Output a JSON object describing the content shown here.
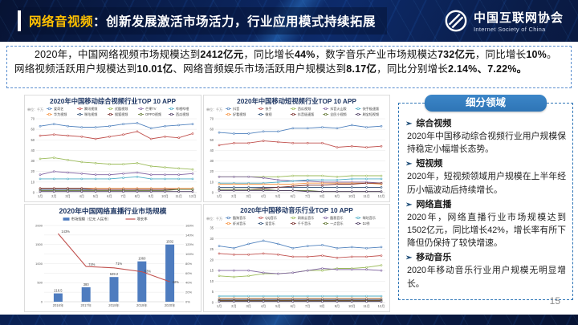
{
  "header": {
    "title_highlight": "网络音视频",
    "title_rest": "：创新发展激活市场活力，行业应用模式持续拓展",
    "logo_cn": "中国互联网协会",
    "logo_en": "Internet Society of China"
  },
  "intro": {
    "segments": [
      {
        "t": "2020年，中国网络视频市场规模达到",
        "b": false
      },
      {
        "t": "2412亿元",
        "b": true
      },
      {
        "t": "，同比增长",
        "b": false
      },
      {
        "t": "44%",
        "b": true
      },
      {
        "t": "，数字音乐产业市场规模达",
        "b": false
      },
      {
        "t": "732亿元",
        "b": true
      },
      {
        "t": "，同比增长",
        "b": false
      },
      {
        "t": "10%",
        "b": true
      },
      {
        "t": "。网络视频活跃用户规模达到",
        "b": false
      },
      {
        "t": "10.01亿",
        "b": true
      },
      {
        "t": "、网络音频娱乐市场活跃用户规模达到",
        "b": false
      },
      {
        "t": "8.17亿",
        "b": true
      },
      {
        "t": "，同比分别增长",
        "b": false
      },
      {
        "t": "2.14%、7.22%。",
        "b": true
      }
    ]
  },
  "sidebar": {
    "title": "细分领域",
    "bullet": "➢",
    "sections": [
      {
        "title": "综合视频",
        "body": "2020年中国移动综合视频行业用户规模保持稳定小幅增长态势。"
      },
      {
        "title": "短视频",
        "body": "2020年，短视频领域用户规模在上半年经历小幅波动后持续增长。"
      },
      {
        "title": "网络直播",
        "body": "2020年，网络直播行业市场规模达到1502亿元，同比增长42%，增长率有所下降但仍保持了较快增速。"
      },
      {
        "title": "移动音乐",
        "body": "2020年移动音乐行业用户规模无明显增长。"
      }
    ]
  },
  "page_number": "15",
  "colors": {
    "accent": "#2E75B6",
    "highlight": "#FFC000",
    "bar": "#4E7CBF",
    "line": "#C0504D",
    "series": [
      "#4F81BD",
      "#C0504D",
      "#9BBB59",
      "#8064A2",
      "#4BACC6",
      "#F79646",
      "#2C4D75",
      "#772C2A",
      "#5F7530",
      "#4D3B62"
    ]
  },
  "chart_data": [
    {
      "type": "line",
      "title": "2020年中国移动综合视频行业TOP 10 APP",
      "unit": "单位：千万",
      "x": [
        "1月",
        "2月",
        "3月",
        "4月",
        "5月",
        "6月",
        "7月",
        "8月",
        "9月",
        "10月",
        "11月",
        "12月"
      ],
      "ylim": [
        0,
        70
      ],
      "ystep": 10,
      "series": [
        {
          "name": "爱奇艺",
          "values": [
            63,
            65,
            63,
            62,
            62,
            63,
            65,
            66,
            61,
            63,
            64,
            65
          ]
        },
        {
          "name": "腾讯视频",
          "values": [
            54,
            55,
            54,
            53,
            51,
            53,
            55,
            58,
            51,
            53,
            52,
            56
          ]
        },
        {
          "name": "优酷视频",
          "values": [
            32,
            33,
            31,
            29,
            28,
            27,
            27,
            28,
            25,
            24,
            23,
            22
          ]
        },
        {
          "name": "芒果TV",
          "values": [
            17,
            20,
            19,
            18,
            17,
            17,
            18,
            19,
            17,
            17,
            17,
            18
          ]
        },
        {
          "name": "哔哩哔哩",
          "values": [
            13,
            13,
            13,
            13,
            13,
            13,
            14,
            15,
            13,
            13,
            13,
            13
          ]
        },
        {
          "name": "华为视频",
          "values": [
            4,
            4,
            4,
            4,
            4,
            4,
            4,
            4,
            4,
            4,
            4,
            4
          ]
        },
        {
          "name": "咪咕视频",
          "values": [
            3,
            3,
            3,
            3,
            3,
            3,
            3,
            3,
            3,
            3,
            3,
            3
          ]
        },
        {
          "name": "搜狐视频",
          "values": [
            4,
            4,
            4,
            4,
            3,
            3,
            3,
            3,
            3,
            3,
            3,
            3
          ]
        },
        {
          "name": "OPPO视频",
          "values": [
            2,
            2,
            2,
            2,
            2,
            2,
            2,
            2,
            2,
            2,
            3,
            3
          ]
        },
        {
          "name": "西瓜视频",
          "values": [
            1,
            1,
            1,
            1,
            1,
            1,
            1,
            1,
            1,
            1,
            1,
            1
          ]
        }
      ]
    },
    {
      "type": "line",
      "title": "2020年中国移动短视频行业TOP 10 APP",
      "unit": "单位：千万",
      "x": [
        "1月",
        "2月",
        "3月",
        "4月",
        "5月",
        "6月",
        "7月",
        "8月",
        "9月",
        "10月",
        "11月",
        "12月"
      ],
      "ylim": [
        0,
        70
      ],
      "ystep": 10,
      "series": [
        {
          "name": "抖音",
          "values": [
            57,
            56,
            56,
            58,
            58,
            61,
            61,
            62,
            61,
            64,
            62,
            63
          ]
        },
        {
          "name": "快手",
          "values": [
            45,
            47,
            47,
            49,
            48,
            47,
            47,
            47,
            43,
            44,
            43,
            44
          ]
        },
        {
          "name": "西瓜视频",
          "values": [
            15,
            15,
            15,
            15,
            15,
            16,
            16,
            16,
            15,
            16,
            16,
            16
          ]
        },
        {
          "name": "抖音火山版",
          "values": [
            15,
            15,
            15,
            14,
            12,
            11,
            11,
            10,
            10,
            10,
            10,
            9
          ]
        },
        {
          "name": "快手极速版",
          "values": [
            9,
            9,
            9,
            9,
            10,
            11,
            12,
            12,
            12,
            13,
            13,
            13
          ]
        },
        {
          "name": "好看视频",
          "values": [
            8,
            8,
            8,
            8,
            8,
            8,
            9,
            9,
            9,
            9,
            9,
            8
          ]
        },
        {
          "name": "微视",
          "values": [
            5,
            5,
            5,
            5,
            5,
            5,
            5,
            5,
            5,
            5,
            5,
            5
          ]
        },
        {
          "name": "抖音极速版",
          "values": [
            3,
            3,
            3,
            4,
            5,
            6,
            7,
            7,
            8,
            8,
            9,
            9
          ]
        },
        {
          "name": "全民小视频",
          "values": [
            3,
            3,
            3,
            3,
            2,
            2,
            2,
            1,
            1,
            1,
            1,
            1
          ]
        },
        {
          "name": "刷宝短视频",
          "values": [
            2,
            2,
            2,
            2,
            2,
            2,
            1,
            1,
            1,
            1,
            1,
            1
          ]
        }
      ]
    },
    {
      "type": "bar-line",
      "title": "2020年中国网络直播行业市场规模",
      "categories": [
        "2016年",
        "2017年",
        "2018年",
        "2019年",
        "2020年"
      ],
      "bar": {
        "name": "市场规模（亿元 人民币）",
        "values": [
          218.5,
          380,
          649.2,
          1060,
          1502
        ],
        "labels": [
          "218.5",
          "380",
          "649.2",
          "1060",
          "1502"
        ]
      },
      "line": {
        "name": "增长率",
        "values": [
          143,
          74,
          71,
          63,
          42
        ],
        "labels": [
          "143%",
          "74%",
          "71%",
          "63%",
          "42%"
        ]
      },
      "left_max": 2000,
      "left_step": 500,
      "right_max": 160,
      "right_step": 20
    },
    {
      "type": "line",
      "title": "2020年中国移动音乐行业TOP 10 APP",
      "unit": "单位：千万",
      "x": [
        "1月",
        "2月",
        "3月",
        "4月",
        "5月",
        "6月",
        "7月",
        "8月",
        "9月",
        "10月",
        "11月",
        "12月"
      ],
      "ylim": [
        0,
        35
      ],
      "ystep": 5,
      "series": [
        {
          "name": "酷狗音乐",
          "values": [
            26.5,
            25.5,
            27.5,
            29,
            27.5,
            25.5,
            26.5,
            27,
            25.5,
            26,
            25.5,
            26
          ]
        },
        {
          "name": "QQ音乐",
          "values": [
            23,
            22.5,
            22.5,
            23,
            22.5,
            21.5,
            21.5,
            22,
            21,
            21.5,
            21.5,
            22
          ]
        },
        {
          "name": "网易云音乐",
          "values": [
            12.5,
            12,
            12.5,
            13.5,
            13.5,
            14,
            15,
            15,
            16,
            16,
            16.5,
            17.5
          ]
        },
        {
          "name": "酷我音乐",
          "values": [
            15,
            15,
            15,
            14,
            13.5,
            14,
            15,
            16,
            15.5,
            15.5,
            15.5,
            15
          ]
        },
        {
          "name": "咪咕音乐",
          "values": [
            3,
            3,
            3,
            3,
            3,
            3,
            3,
            3,
            3,
            3,
            3,
            3
          ]
        },
        {
          "name": "虾米音乐",
          "values": [
            2,
            2,
            2,
            2,
            2,
            2,
            2,
            2,
            2,
            2,
            2,
            2
          ]
        },
        {
          "name": "爱音乐",
          "values": [
            1.5,
            1.5,
            1.5,
            1.5,
            1.5,
            1.5,
            1.5,
            1.5,
            1.5,
            1.5,
            1.5,
            1.5
          ]
        },
        {
          "name": "千千音乐",
          "values": [
            1,
            1,
            1,
            1,
            1,
            1,
            1,
            1,
            1,
            1,
            1,
            1
          ]
        },
        {
          "name": "一点音乐",
          "values": [
            0.8,
            0.8,
            0.8,
            0.8,
            0.8,
            0.8,
            0.8,
            0.8,
            0.8,
            0.8,
            0.8,
            0.8
          ]
        },
        {
          "name": "DJ秀",
          "values": [
            0.5,
            0.5,
            0.5,
            0.5,
            0.5,
            0.5,
            0.5,
            0.5,
            0.5,
            0.5,
            0.5,
            0.5
          ]
        }
      ]
    }
  ]
}
